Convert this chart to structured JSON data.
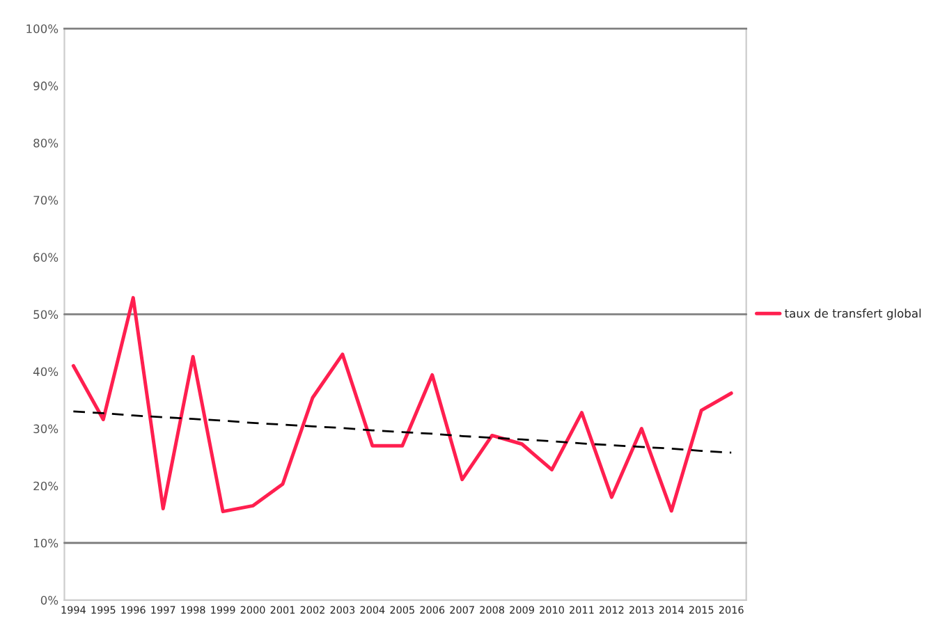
{
  "chart_data": {
    "type": "line",
    "categories": [
      "1994",
      "1995",
      "1996",
      "1997",
      "1998",
      "1999",
      "2000",
      "2001",
      "2002",
      "2003",
      "2004",
      "2005",
      "2006",
      "2007",
      "2008",
      "2009",
      "2010",
      "2011",
      "2012",
      "2013",
      "2014",
      "2015",
      "2016"
    ],
    "series": [
      {
        "name": "taux de transfert global",
        "color": "#ff1f4f",
        "values": [
          41.0,
          31.6,
          52.9,
          16.0,
          42.6,
          15.5,
          16.5,
          20.3,
          35.4,
          43.0,
          27.0,
          27.0,
          39.4,
          21.1,
          28.8,
          27.3,
          22.8,
          32.8,
          18.0,
          30.0,
          15.6,
          33.2,
          36.2
        ]
      },
      {
        "type": "line",
        "color": "#000000",
        "line_style": "dashed",
        "values": [
          33.0,
          32.7,
          32.3,
          32.0,
          31.7,
          31.4,
          31.0,
          30.7,
          30.4,
          30.1,
          29.7,
          29.4,
          29.1,
          28.7,
          28.4,
          28.1,
          27.8,
          27.4,
          27.1,
          26.8,
          26.5,
          26.1,
          25.8
        ]
      }
    ],
    "ylim": [
      0,
      100
    ],
    "yticks": [
      {
        "value": 0,
        "label": "0%"
      },
      {
        "value": 10,
        "label": "10%"
      },
      {
        "value": 20,
        "label": "20%"
      },
      {
        "value": 30,
        "label": "30%"
      },
      {
        "value": 40,
        "label": "40%"
      },
      {
        "value": 50,
        "label": "50%"
      },
      {
        "value": 60,
        "label": "60%"
      },
      {
        "value": 70,
        "label": "70%"
      },
      {
        "value": 80,
        "label": "80%"
      },
      {
        "value": 90,
        "label": "90%"
      },
      {
        "value": 100,
        "label": "100%"
      }
    ],
    "ref_lines": [
      {
        "axis": "y",
        "value": 50,
        "color": "#808080"
      },
      {
        "axis": "y",
        "value": 10,
        "color": "#808080"
      }
    ],
    "grid": false,
    "legend": "right",
    "marker": "none",
    "line_style": "solid"
  }
}
